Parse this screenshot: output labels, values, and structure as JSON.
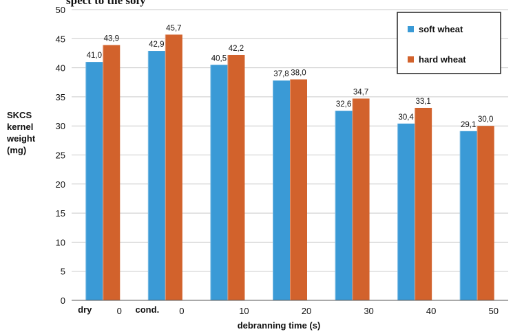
{
  "header_text": "spect to the sofy",
  "chart_data": {
    "type": "bar",
    "title": "",
    "xlabel": "debranning time (s)",
    "ylabel_lines": [
      "SKCS",
      "kernel",
      "weight",
      "(mg)"
    ],
    "ylim": [
      0,
      50
    ],
    "ytick_step": 5,
    "grid": true,
    "legend_position": "top-right",
    "categories": [
      "0",
      "0",
      "10",
      "20",
      "30",
      "40",
      "50"
    ],
    "category_prefixes": [
      "dry",
      "cond.",
      "",
      "",
      "",
      "",
      ""
    ],
    "series": [
      {
        "name": "soft wheat",
        "color": "#3a9ad6",
        "values": [
          41.0,
          42.9,
          40.5,
          37.8,
          32.6,
          30.4,
          29.1
        ],
        "labels": [
          "41,0",
          "42,9",
          "40,5",
          "37,8",
          "32,6",
          "30,4",
          "29,1"
        ]
      },
      {
        "name": "hard wheat",
        "color": "#d2622c",
        "values": [
          43.9,
          45.7,
          42.2,
          38.0,
          34.7,
          33.1,
          30.0
        ],
        "labels": [
          "43,9",
          "45,7",
          "42,2",
          "38,0",
          "34,7",
          "33,1",
          "30,0"
        ]
      }
    ]
  }
}
